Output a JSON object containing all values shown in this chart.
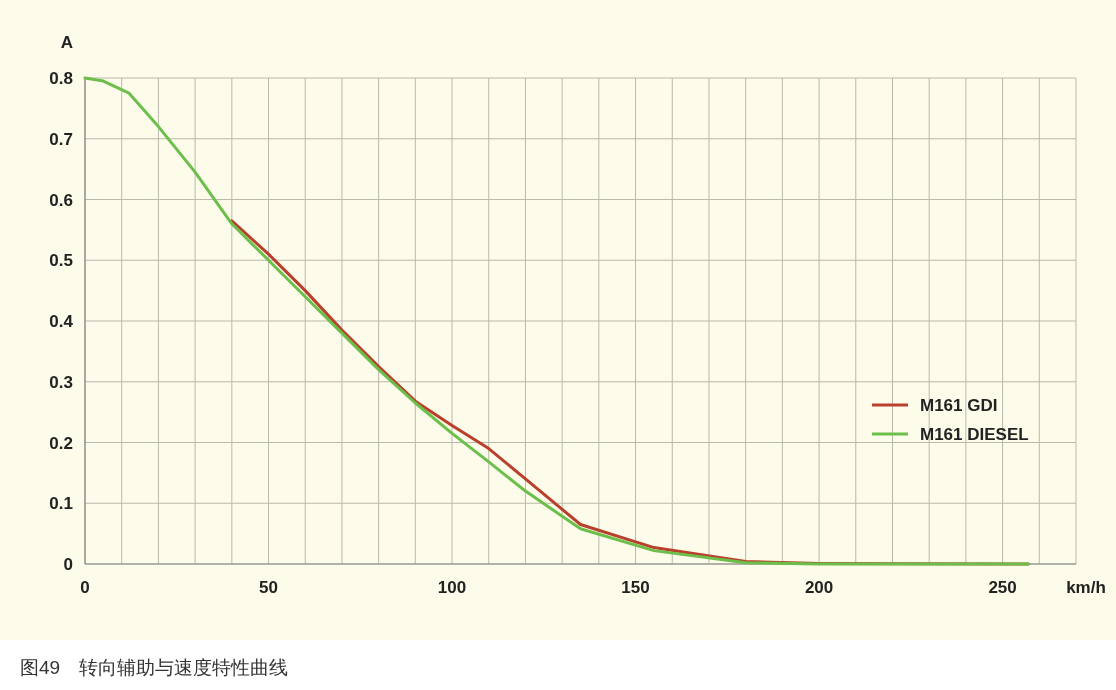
{
  "chart_data": {
    "type": "line",
    "xlabel": "km/h",
    "ylabel": "A",
    "annotations": [
      "图49　转向辅助与速度特性曲线"
    ],
    "xlim": [
      0,
      270
    ],
    "xticks": [
      0,
      {
        "value": 10,
        "label": null
      },
      {
        "value": 20,
        "label": null
      },
      {
        "value": 30,
        "label": null
      },
      {
        "value": 40,
        "label": null
      },
      50,
      {
        "value": 60,
        "label": null
      },
      {
        "value": 70,
        "label": null
      },
      {
        "value": 80,
        "label": null
      },
      {
        "value": 90,
        "label": null
      },
      100,
      {
        "value": 110,
        "label": null
      },
      {
        "value": 120,
        "label": null
      },
      {
        "value": 130,
        "label": null
      },
      {
        "value": 140,
        "label": null
      },
      150,
      {
        "value": 160,
        "label": null
      },
      {
        "value": 170,
        "label": null
      },
      {
        "value": 180,
        "label": null
      },
      {
        "value": 190,
        "label": null
      },
      200,
      {
        "value": 210,
        "label": null
      },
      {
        "value": 220,
        "label": null
      },
      {
        "value": 230,
        "label": null
      },
      {
        "value": 240,
        "label": null
      },
      250,
      {
        "value": 260,
        "label": null
      },
      {
        "value": 270,
        "label": null
      }
    ],
    "ylim": [
      0,
      0.8
    ],
    "yticks": [
      0,
      0.1,
      0.2,
      0.3,
      0.4,
      0.5,
      0.6,
      0.7,
      0.8
    ],
    "grid": true,
    "legend": "right",
    "marker": "none",
    "line_style": "solid",
    "series": [
      {
        "name": "M161 GDI",
        "color": "#b8402c",
        "x": [
          40,
          50,
          55,
          60,
          70,
          80,
          90,
          100,
          110,
          120,
          135,
          155,
          180,
          200,
          257
        ],
        "values": [
          0.565,
          0.51,
          0.48,
          0.45,
          0.385,
          0.325,
          0.268,
          0.228,
          0.19,
          0.14,
          0.065,
          0.027,
          0.004,
          0.001,
          0
        ]
      },
      {
        "name": "M161 DIESEL",
        "color": "#6cbf4a",
        "x": [
          0,
          5,
          12,
          20,
          30,
          40,
          50,
          55,
          60,
          70,
          80,
          90,
          100,
          110,
          120,
          135,
          155,
          180,
          200,
          257
        ],
        "values": [
          0.8,
          0.795,
          0.775,
          0.72,
          0.645,
          0.56,
          0.5,
          0.47,
          0.44,
          0.38,
          0.32,
          0.265,
          0.215,
          0.168,
          0.12,
          0.058,
          0.022,
          0.002,
          0,
          0
        ]
      }
    ]
  }
}
